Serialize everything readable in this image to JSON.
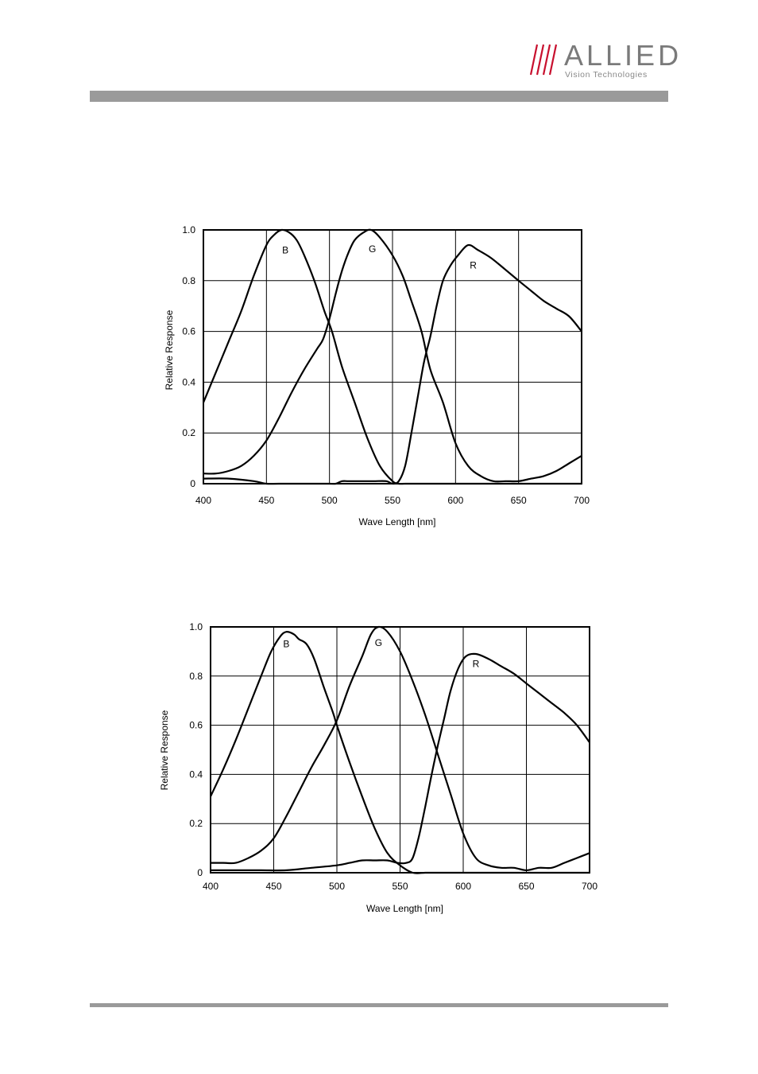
{
  "logo": {
    "brand": "ALLIED",
    "tagline": "Vision Technologies",
    "colors": {
      "slashes": "#c8102e",
      "text": "#7a7a7a"
    }
  },
  "chart_data": [
    {
      "type": "line",
      "xlabel": "Wave Length [nm]",
      "ylabel": "Relative Response",
      "xlim": [
        400,
        700
      ],
      "ylim": [
        0,
        1.0
      ],
      "xticks": [
        "400",
        "450",
        "500",
        "550",
        "600",
        "650",
        "700"
      ],
      "yticks": [
        "0",
        "0.2",
        "0.4",
        "0.6",
        "0.8",
        "1.0"
      ],
      "grid": true,
      "series": [
        {
          "name": "B",
          "label_pos": [
            465,
            0.92
          ],
          "points": [
            [
              400,
              0.32
            ],
            [
              410,
              0.44
            ],
            [
              420,
              0.56
            ],
            [
              430,
              0.68
            ],
            [
              440,
              0.82
            ],
            [
              450,
              0.94
            ],
            [
              456,
              0.98
            ],
            [
              462,
              1.0
            ],
            [
              468,
              0.99
            ],
            [
              474,
              0.96
            ],
            [
              480,
              0.9
            ],
            [
              488,
              0.8
            ],
            [
              496,
              0.68
            ],
            [
              502,
              0.6
            ],
            [
              510,
              0.46
            ],
            [
              520,
              0.32
            ],
            [
              530,
              0.18
            ],
            [
              540,
              0.07
            ],
            [
              550,
              0.01
            ],
            [
              555,
              0.0
            ],
            [
              560,
              0.0
            ],
            [
              570,
              0.0
            ],
            [
              580,
              0.0
            ],
            [
              590,
              0.0
            ],
            [
              600,
              0.0
            ],
            [
              610,
              0.0
            ],
            [
              620,
              0.0
            ],
            [
              630,
              0.0
            ],
            [
              640,
              0.0
            ],
            [
              650,
              0.0
            ],
            [
              660,
              0.0
            ],
            [
              670,
              0.0
            ],
            [
              680,
              0.0
            ],
            [
              690,
              0.0
            ],
            [
              700,
              0.0
            ]
          ]
        },
        {
          "name": "G",
          "label_pos": [
            534,
            0.925
          ],
          "points": [
            [
              400,
              0.04
            ],
            [
              410,
              0.04
            ],
            [
              420,
              0.05
            ],
            [
              430,
              0.07
            ],
            [
              440,
              0.11
            ],
            [
              450,
              0.17
            ],
            [
              460,
              0.26
            ],
            [
              470,
              0.36
            ],
            [
              480,
              0.45
            ],
            [
              490,
              0.53
            ],
            [
              495,
              0.57
            ],
            [
              500,
              0.65
            ],
            [
              505,
              0.75
            ],
            [
              510,
              0.84
            ],
            [
              515,
              0.91
            ],
            [
              520,
              0.96
            ],
            [
              527,
              0.99
            ],
            [
              533,
              1.0
            ],
            [
              540,
              0.97
            ],
            [
              550,
              0.9
            ],
            [
              558,
              0.82
            ],
            [
              565,
              0.72
            ],
            [
              573,
              0.6
            ],
            [
              580,
              0.45
            ],
            [
              590,
              0.32
            ],
            [
              600,
              0.16
            ],
            [
              610,
              0.07
            ],
            [
              620,
              0.03
            ],
            [
              630,
              0.01
            ],
            [
              640,
              0.01
            ],
            [
              650,
              0.01
            ],
            [
              660,
              0.02
            ],
            [
              670,
              0.03
            ],
            [
              680,
              0.05
            ],
            [
              690,
              0.08
            ],
            [
              700,
              0.11
            ]
          ]
        },
        {
          "name": "R",
          "label_pos": [
            614,
            0.86
          ],
          "points": [
            [
              400,
              0.02
            ],
            [
              420,
              0.02
            ],
            [
              440,
              0.01
            ],
            [
              450,
              0.0
            ],
            [
              460,
              0.0
            ],
            [
              480,
              0.0
            ],
            [
              500,
              0.0
            ],
            [
              505,
              0.0
            ],
            [
              510,
              0.01
            ],
            [
              515,
              0.01
            ],
            [
              525,
              0.01
            ],
            [
              535,
              0.01
            ],
            [
              545,
              0.01
            ],
            [
              550,
              0.0
            ],
            [
              555,
              0.01
            ],
            [
              560,
              0.07
            ],
            [
              565,
              0.2
            ],
            [
              570,
              0.34
            ],
            [
              575,
              0.48
            ],
            [
              580,
              0.58
            ],
            [
              585,
              0.7
            ],
            [
              590,
              0.8
            ],
            [
              596,
              0.86
            ],
            [
              602,
              0.9
            ],
            [
              610,
              0.94
            ],
            [
              618,
              0.92
            ],
            [
              628,
              0.89
            ],
            [
              638,
              0.85
            ],
            [
              650,
              0.8
            ],
            [
              660,
              0.76
            ],
            [
              670,
              0.72
            ],
            [
              680,
              0.69
            ],
            [
              690,
              0.66
            ],
            [
              700,
              0.6
            ]
          ]
        }
      ]
    },
    {
      "type": "line",
      "xlabel": "Wave Length [nm]",
      "ylabel": "Relative Response",
      "xlim": [
        400,
        700
      ],
      "ylim": [
        0,
        1.0
      ],
      "xticks": [
        "400",
        "450",
        "500",
        "550",
        "600",
        "650",
        "700"
      ],
      "yticks": [
        "0",
        "0.2",
        "0.4",
        "0.6",
        "0.8",
        "1.0"
      ],
      "grid": true,
      "series": [
        {
          "name": "B",
          "label_pos": [
            460,
            0.93
          ],
          "points": [
            [
              400,
              0.31
            ],
            [
              410,
              0.42
            ],
            [
              420,
              0.54
            ],
            [
              430,
              0.67
            ],
            [
              440,
              0.8
            ],
            [
              448,
              0.9
            ],
            [
              455,
              0.96
            ],
            [
              460,
              0.98
            ],
            [
              466,
              0.97
            ],
            [
              470,
              0.95
            ],
            [
              476,
              0.93
            ],
            [
              482,
              0.87
            ],
            [
              490,
              0.75
            ],
            [
              497,
              0.65
            ],
            [
              500,
              0.6
            ],
            [
              510,
              0.45
            ],
            [
              520,
              0.31
            ],
            [
              530,
              0.18
            ],
            [
              540,
              0.08
            ],
            [
              550,
              0.03
            ],
            [
              560,
              0.0
            ],
            [
              570,
              0.0
            ],
            [
              580,
              0.0
            ],
            [
              590,
              0.0
            ],
            [
              600,
              0.0
            ],
            [
              610,
              0.0
            ],
            [
              620,
              0.0
            ],
            [
              630,
              0.0
            ],
            [
              640,
              0.0
            ],
            [
              650,
              0.0
            ],
            [
              660,
              0.0
            ],
            [
              670,
              0.0
            ],
            [
              680,
              0.0
            ],
            [
              690,
              0.0
            ],
            [
              700,
              0.0
            ]
          ]
        },
        {
          "name": "G",
          "label_pos": [
            533,
            0.935
          ],
          "points": [
            [
              400,
              0.04
            ],
            [
              410,
              0.04
            ],
            [
              420,
              0.04
            ],
            [
              430,
              0.06
            ],
            [
              440,
              0.09
            ],
            [
              450,
              0.14
            ],
            [
              460,
              0.23
            ],
            [
              470,
              0.33
            ],
            [
              480,
              0.43
            ],
            [
              490,
              0.52
            ],
            [
              500,
              0.62
            ],
            [
              510,
              0.76
            ],
            [
              520,
              0.88
            ],
            [
              527,
              0.97
            ],
            [
              533,
              1.0
            ],
            [
              540,
              0.98
            ],
            [
              550,
              0.9
            ],
            [
              560,
              0.78
            ],
            [
              570,
              0.64
            ],
            [
              580,
              0.48
            ],
            [
              590,
              0.32
            ],
            [
              600,
              0.16
            ],
            [
              610,
              0.06
            ],
            [
              620,
              0.03
            ],
            [
              630,
              0.02
            ],
            [
              640,
              0.02
            ],
            [
              650,
              0.01
            ],
            [
              660,
              0.02
            ],
            [
              670,
              0.02
            ],
            [
              680,
              0.04
            ],
            [
              690,
              0.06
            ],
            [
              700,
              0.08
            ]
          ]
        },
        {
          "name": "R",
          "label_pos": [
            610,
            0.85
          ],
          "points": [
            [
              400,
              0.01
            ],
            [
              420,
              0.01
            ],
            [
              440,
              0.01
            ],
            [
              460,
              0.01
            ],
            [
              480,
              0.02
            ],
            [
              500,
              0.03
            ],
            [
              510,
              0.04
            ],
            [
              520,
              0.05
            ],
            [
              530,
              0.05
            ],
            [
              540,
              0.05
            ],
            [
              548,
              0.04
            ],
            [
              555,
              0.04
            ],
            [
              560,
              0.06
            ],
            [
              565,
              0.15
            ],
            [
              570,
              0.27
            ],
            [
              575,
              0.4
            ],
            [
              580,
              0.52
            ],
            [
              585,
              0.63
            ],
            [
              590,
              0.74
            ],
            [
              596,
              0.83
            ],
            [
              602,
              0.88
            ],
            [
              610,
              0.89
            ],
            [
              620,
              0.87
            ],
            [
              630,
              0.84
            ],
            [
              640,
              0.81
            ],
            [
              650,
              0.77
            ],
            [
              660,
              0.73
            ],
            [
              670,
              0.69
            ],
            [
              680,
              0.65
            ],
            [
              690,
              0.6
            ],
            [
              700,
              0.53
            ]
          ]
        }
      ]
    }
  ]
}
